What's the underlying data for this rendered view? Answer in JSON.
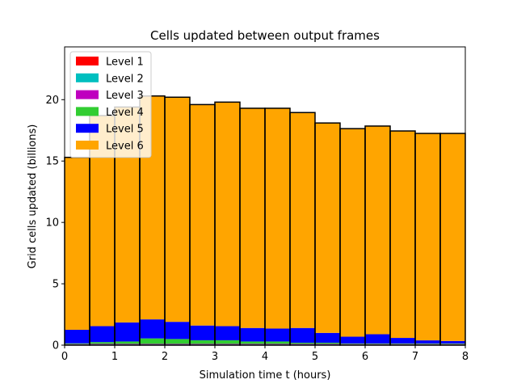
{
  "chart_data": {
    "type": "bar",
    "stacked": true,
    "title": "Cells updated between output frames",
    "xlabel": "Simulation time t (hours)",
    "ylabel": "Grid cells updated (billions)",
    "xlim": [
      0,
      8
    ],
    "ylim": [
      0,
      24.3
    ],
    "xticks": [
      0,
      1,
      2,
      3,
      4,
      5,
      6,
      7,
      8
    ],
    "xtick_labels": [
      "0",
      "1",
      "2",
      "3",
      "4",
      "5",
      "6",
      "7",
      "8"
    ],
    "yticks": [
      0,
      5,
      10,
      15,
      20
    ],
    "ytick_labels": [
      "0",
      "5",
      "10",
      "15",
      "20"
    ],
    "grid": false,
    "legend_position": "top-left",
    "bar_edge_color": "#000000",
    "x_bin_edges": [
      0,
      0.5,
      1,
      1.5,
      2,
      2.5,
      3,
      3.5,
      4,
      4.5,
      5,
      5.5,
      6,
      6.5,
      7,
      7.5,
      8
    ],
    "series": [
      {
        "name": "Level 1",
        "color": "#ff0000",
        "values": [
          0.02,
          0.02,
          0.02,
          0.02,
          0.02,
          0.02,
          0.02,
          0.02,
          0.02,
          0.02,
          0.02,
          0.02,
          0.02,
          0.02,
          0.02,
          0.02
        ]
      },
      {
        "name": "Level 2",
        "color": "#00bfbf",
        "values": [
          0.03,
          0.03,
          0.03,
          0.03,
          0.03,
          0.03,
          0.03,
          0.03,
          0.03,
          0.03,
          0.03,
          0.03,
          0.03,
          0.03,
          0.03,
          0.03
        ]
      },
      {
        "name": "Level 3",
        "color": "#bf00bf",
        "values": [
          0.04,
          0.05,
          0.05,
          0.05,
          0.05,
          0.05,
          0.05,
          0.05,
          0.05,
          0.05,
          0.05,
          0.04,
          0.04,
          0.04,
          0.04,
          0.04
        ]
      },
      {
        "name": "Level 4",
        "color": "#32cd32",
        "values": [
          0.06,
          0.15,
          0.2,
          0.45,
          0.4,
          0.3,
          0.3,
          0.2,
          0.2,
          0.1,
          0.1,
          0.05,
          0.05,
          0.05,
          0.05,
          0.05
        ]
      },
      {
        "name": "Level 5",
        "color": "#0000ff",
        "values": [
          1.1,
          1.3,
          1.55,
          1.55,
          1.4,
          1.2,
          1.15,
          1.1,
          1.05,
          1.2,
          0.8,
          0.55,
          0.75,
          0.45,
          0.25,
          0.2
        ]
      },
      {
        "name": "Level 6",
        "color": "#ffa500",
        "values": [
          14.05,
          17.15,
          17.55,
          18.2,
          18.3,
          18.0,
          18.25,
          17.9,
          17.95,
          17.55,
          17.1,
          16.95,
          16.96,
          16.86,
          16.86,
          16.91
        ]
      }
    ]
  }
}
